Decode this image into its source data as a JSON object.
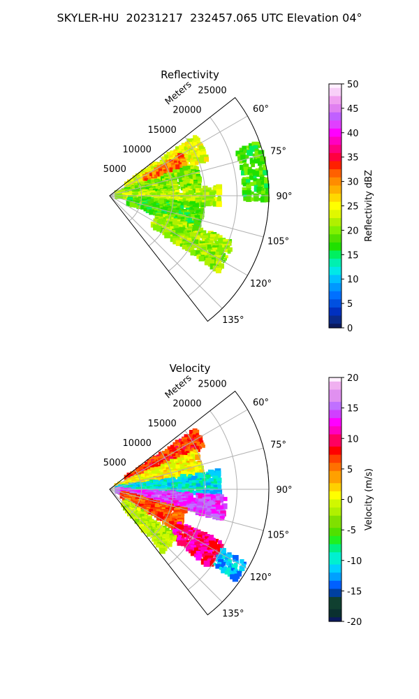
{
  "title": "SKYLER-HU  20231217  232457.065 UTC Elevation 04°",
  "colors": {
    "reflectivity_scale": [
      "#0b1a5e",
      "#0a2a8a",
      "#0030c0",
      "#0050e0",
      "#0070ff",
      "#0098ff",
      "#00c0ff",
      "#00e8e8",
      "#00f0b0",
      "#00f060",
      "#20e000",
      "#50e000",
      "#80f000",
      "#b0f000",
      "#e0f800",
      "#ffff00",
      "#ffd800",
      "#ffb000",
      "#ff8c00",
      "#ff6000",
      "#ff2000",
      "#ff0040",
      "#ff0080",
      "#ff00c0",
      "#ff00ff",
      "#e040ff",
      "#c060ff",
      "#e080f0",
      "#f0a0f0",
      "#f8d0f8",
      "#fff0ff"
    ],
    "velocity_scale": [
      "#0b1a5e",
      "#0a3030",
      "#104030",
      "#0040a0",
      "#0060ff",
      "#00a0ff",
      "#00d0ff",
      "#00f0d0",
      "#00f080",
      "#20f020",
      "#50e000",
      "#80e000",
      "#b0f000",
      "#d0f800",
      "#ffff00",
      "#ffd000",
      "#ffa000",
      "#ff7000",
      "#ff4000",
      "#ff0000",
      "#ff0060",
      "#ff00c0",
      "#ff00ff",
      "#d040ff",
      "#c070ff",
      "#e090f0",
      "#f0b0f0",
      "#fff0ff"
    ]
  },
  "chart_data": [
    {
      "type": "heatmap",
      "subtype": "polar-sector",
      "title": "Reflectivity",
      "range_label": "Meters",
      "range_ticks": [
        5000,
        10000,
        15000,
        20000,
        25000
      ],
      "range_max": 25000,
      "azimuth_ticks": [
        "60°",
        "75°",
        "90°",
        "105°",
        "120°",
        "135°"
      ],
      "azimuth_range": [
        52,
        142
      ],
      "colorbar": {
        "label": "Reflectivity dBZ",
        "ticks": [
          "0",
          "5",
          "10",
          "15",
          "20",
          "25",
          "30",
          "35",
          "40",
          "45",
          "50"
        ],
        "min": 0,
        "max": 50
      },
      "echo_regions": [
        {
          "az": [
            55,
            70
          ],
          "r": [
            3000,
            16500
          ],
          "value": 24
        },
        {
          "az": [
            60,
            68
          ],
          "r": [
            6000,
            13000
          ],
          "value": 31
        },
        {
          "az": [
            70,
            85
          ],
          "r": [
            1000,
            14500
          ],
          "value": 20
        },
        {
          "az": [
            85,
            95
          ],
          "r": [
            1000,
            17500
          ],
          "value": 22
        },
        {
          "az": [
            95,
            112
          ],
          "r": [
            3000,
            15000
          ],
          "value": 18
        },
        {
          "az": [
            110,
            125
          ],
          "r": [
            8000,
            21000
          ],
          "value": 21
        },
        {
          "az": [
            70,
            92
          ],
          "r": [
            21000,
            25000
          ],
          "value": 18
        }
      ]
    },
    {
      "type": "heatmap",
      "subtype": "polar-sector",
      "title": "Velocity",
      "range_label": "Meters",
      "range_ticks": [
        5000,
        10000,
        15000,
        20000,
        25000
      ],
      "range_max": 25000,
      "azimuth_ticks": [
        "60°",
        "75°",
        "90°",
        "105°",
        "120°",
        "135°"
      ],
      "azimuth_range": [
        52,
        142
      ],
      "colorbar": {
        "label": "Velocity (m/s)",
        "ticks": [
          "-20",
          "-15",
          "-10",
          "-5",
          "0",
          "5",
          "10",
          "15",
          "20"
        ],
        "min": -20,
        "max": 20
      },
      "echo_regions": [
        {
          "az": [
            55,
            66
          ],
          "r": [
            3000,
            16500
          ],
          "value": 7
        },
        {
          "az": [
            66,
            80
          ],
          "r": [
            1000,
            15000
          ],
          "value": 1
        },
        {
          "az": [
            80,
            93
          ],
          "r": [
            1000,
            17500
          ],
          "value": -10
        },
        {
          "az": [
            93,
            105
          ],
          "r": [
            1000,
            18500
          ],
          "value": 14
        },
        {
          "az": [
            105,
            122
          ],
          "r": [
            2000,
            12500
          ],
          "value": 6
        },
        {
          "az": [
            115,
            128
          ],
          "r": [
            12000,
            20000
          ],
          "value": 10
        },
        {
          "az": [
            118,
            126
          ],
          "r": [
            20000,
            24500
          ],
          "value": -12
        },
        {
          "az": [
            125,
            140
          ],
          "r": [
            3000,
            13000
          ],
          "value": -2
        }
      ]
    }
  ]
}
